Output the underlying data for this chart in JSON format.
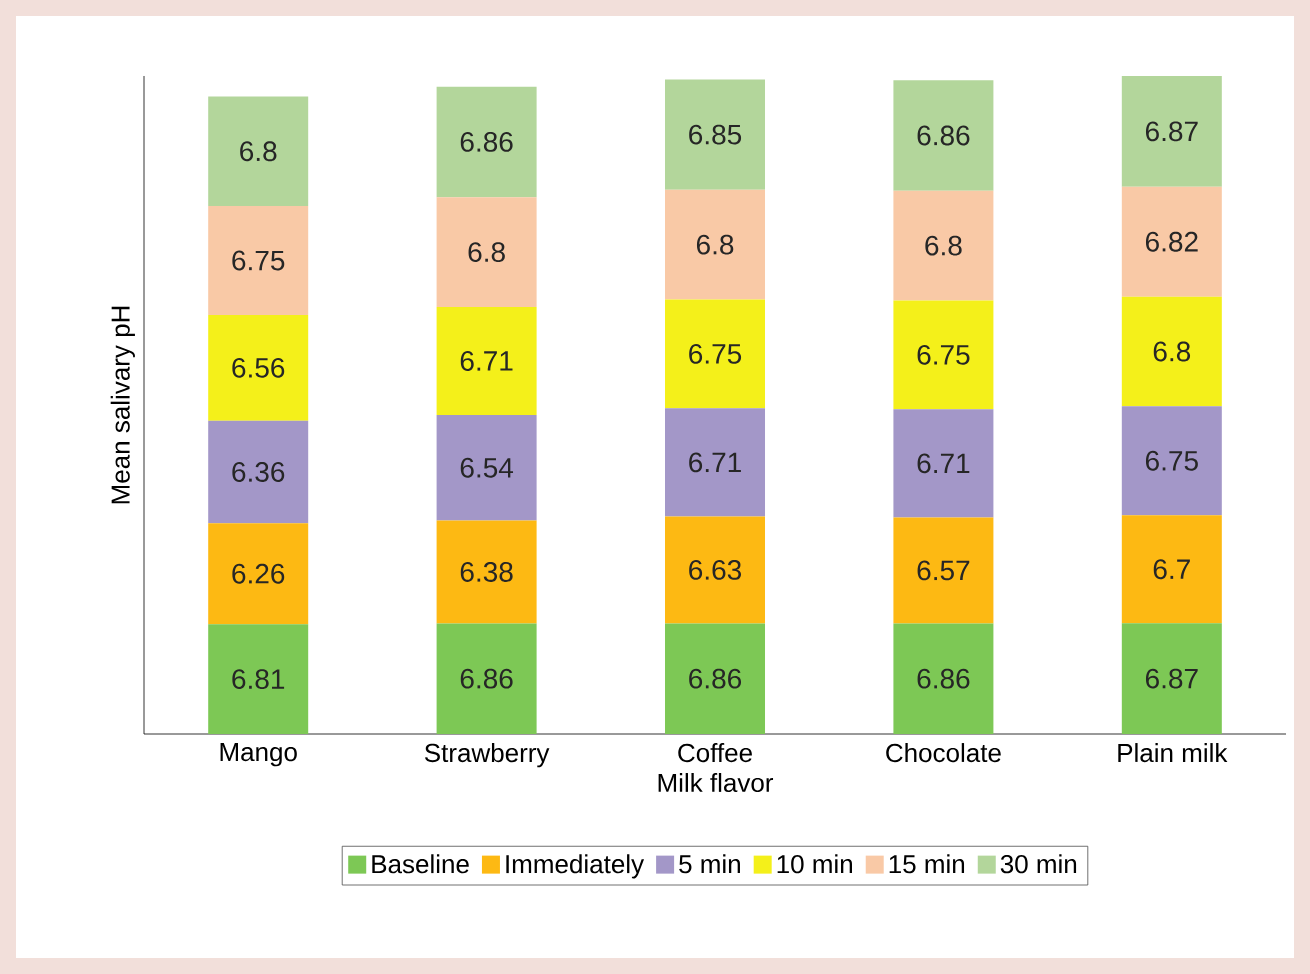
{
  "chart_data": {
    "type": "bar",
    "stacked": true,
    "data_labels": true,
    "xlabel": "Milk flavor",
    "ylabel": "Mean salivary pH",
    "categories": [
      "Mango",
      "Strawberry",
      "Coffee",
      "Chocolate",
      "Plain milk"
    ],
    "series": [
      {
        "name": "Baseline",
        "color": "#7dc855",
        "values": [
          6.81,
          6.86,
          6.86,
          6.86,
          6.87
        ]
      },
      {
        "name": "Immediately",
        "color": "#fdb913",
        "values": [
          6.26,
          6.38,
          6.63,
          6.57,
          6.7
        ]
      },
      {
        "name": "5 min",
        "color": "#a397c8",
        "values": [
          6.36,
          6.54,
          6.71,
          6.71,
          6.75
        ]
      },
      {
        "name": "10 min",
        "color": "#f4f01a",
        "values": [
          6.56,
          6.71,
          6.75,
          6.75,
          6.8
        ]
      },
      {
        "name": "15 min",
        "color": "#f9c9a6",
        "values": [
          6.75,
          6.8,
          6.8,
          6.8,
          6.82
        ]
      },
      {
        "name": "30 min",
        "color": "#b3d69b",
        "values": [
          6.8,
          6.86,
          6.85,
          6.86,
          6.87
        ]
      }
    ],
    "legend": "bottom"
  }
}
